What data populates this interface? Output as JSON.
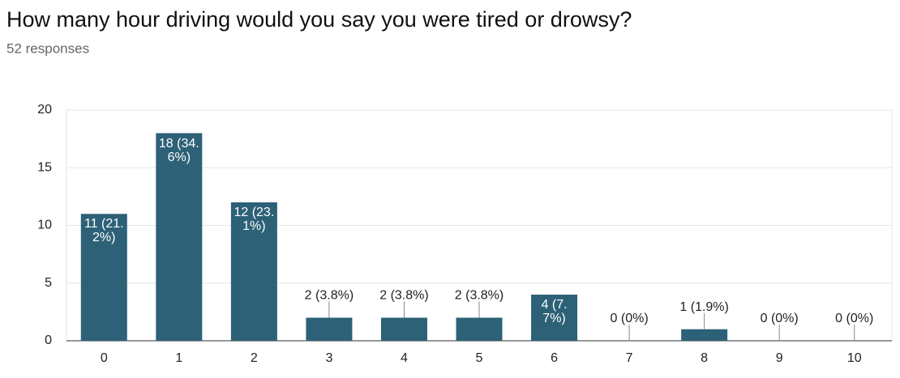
{
  "chart_data": {
    "type": "bar",
    "title": "How many hour driving would you say you were tired or drowsy?",
    "subtitle": "52 responses",
    "categories": [
      "0",
      "1",
      "2",
      "3",
      "4",
      "5",
      "6",
      "7",
      "8",
      "9",
      "10"
    ],
    "values": [
      11,
      18,
      12,
      2,
      2,
      2,
      4,
      0,
      1,
      0,
      0
    ],
    "value_labels": [
      "11 (21.2%)",
      "18 (34.6%)",
      "12 (23.1%)",
      "2 (3.8%)",
      "2 (3.8%)",
      "2 (3.8%)",
      "4 (7.7%)",
      "0 (0%)",
      "1 (1.9%)",
      "0 (0%)",
      "0 (0%)"
    ],
    "color": "#2d6177",
    "ylim": [
      0,
      20
    ],
    "yticks": [
      0,
      5,
      10,
      15,
      20
    ],
    "grid": true
  }
}
